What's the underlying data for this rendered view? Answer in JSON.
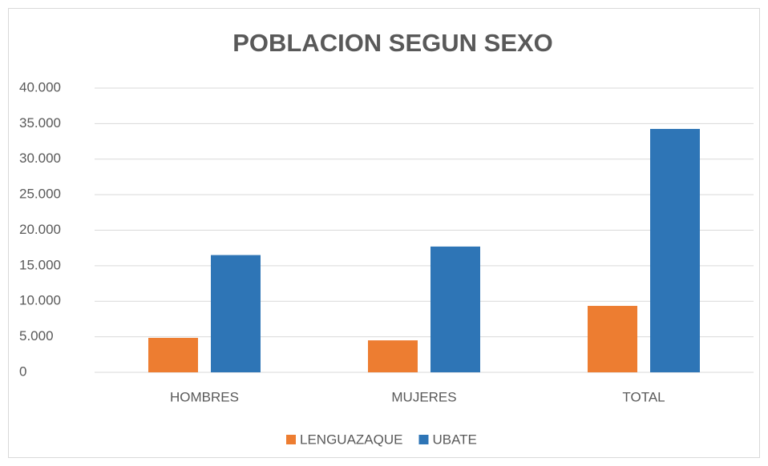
{
  "chart_data": {
    "type": "bar",
    "title": "POBLACION SEGUN SEXO",
    "categories": [
      "HOMBRES",
      "MUJERES",
      "TOTAL"
    ],
    "series": [
      {
        "name": "LENGUAZAQUE",
        "color": "#ed7d31",
        "values": [
          4850,
          4500,
          9350
        ]
      },
      {
        "name": "UBATE",
        "color": "#2e75b6",
        "values": [
          16500,
          17700,
          34250
        ]
      }
    ],
    "ylim": [
      0,
      40000
    ],
    "yticks": [
      0,
      {
        "value": 5000,
        "label": "5.000"
      },
      {
        "value": 10000,
        "label": "10.000"
      },
      {
        "value": 15000,
        "label": "15.000"
      },
      {
        "value": 20000,
        "label": "20.000"
      },
      {
        "value": 25000,
        "label": "25.000"
      },
      {
        "value": 30000,
        "label": "30.000"
      },
      {
        "value": 35000,
        "label": "35.000"
      },
      {
        "value": 40000,
        "label": "40.000"
      }
    ],
    "grid": true,
    "legend": "bottom"
  }
}
